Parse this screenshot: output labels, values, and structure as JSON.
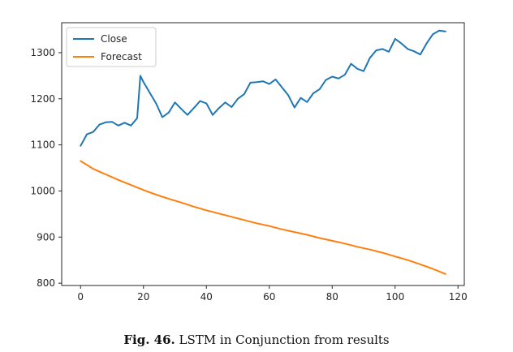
{
  "chart_data": {
    "type": "line",
    "title": "",
    "xlabel": "",
    "ylabel": "",
    "xlim": [
      -6,
      122
    ],
    "ylim": [
      795,
      1365
    ],
    "xticks": [
      0,
      20,
      40,
      60,
      80,
      100,
      120
    ],
    "yticks": [
      800,
      900,
      1000,
      1100,
      1200,
      1300
    ],
    "grid": false,
    "legend_position": "top-left",
    "series": [
      {
        "name": "Close",
        "color": "#1f77b4",
        "x": [
          0,
          2,
          4,
          6,
          8,
          10,
          12,
          14,
          16,
          18,
          19,
          20,
          22,
          24,
          26,
          28,
          30,
          32,
          34,
          36,
          38,
          40,
          42,
          44,
          46,
          48,
          50,
          52,
          54,
          56,
          58,
          60,
          62,
          64,
          66,
          68,
          70,
          72,
          74,
          76,
          78,
          80,
          82,
          84,
          86,
          88,
          90,
          92,
          94,
          96,
          98,
          100,
          102,
          104,
          106,
          108,
          110,
          112,
          114,
          116
        ],
        "values": [
          1098,
          1123,
          1128,
          1144,
          1149,
          1150,
          1142,
          1148,
          1142,
          1158,
          1250,
          1236,
          1213,
          1190,
          1160,
          1170,
          1192,
          1178,
          1165,
          1180,
          1195,
          1190,
          1165,
          1180,
          1192,
          1182,
          1200,
          1210,
          1235,
          1236,
          1238,
          1232,
          1242,
          1225,
          1208,
          1181,
          1202,
          1193,
          1212,
          1221,
          1241,
          1248,
          1244,
          1252,
          1276,
          1265,
          1260,
          1289,
          1305,
          1308,
          1302,
          1330,
          1320,
          1308,
          1303,
          1296,
          1320,
          1340,
          1348,
          1346
        ]
      },
      {
        "name": "Forecast",
        "color": "#ff7f0e",
        "x": [
          0,
          4,
          8,
          12,
          16,
          20,
          24,
          28,
          32,
          36,
          40,
          44,
          48,
          52,
          56,
          60,
          64,
          68,
          72,
          76,
          80,
          84,
          88,
          92,
          96,
          100,
          104,
          108,
          112,
          116
        ],
        "values": [
          1065,
          1048,
          1036,
          1024,
          1013,
          1002,
          992,
          983,
          975,
          966,
          958,
          951,
          944,
          937,
          930,
          924,
          917,
          911,
          905,
          898,
          892,
          886,
          879,
          873,
          866,
          858,
          850,
          841,
          831,
          820
        ]
      }
    ]
  },
  "caption": {
    "prefix": "Fig. 46.",
    "text": "LSTM in Conjunction from results"
  }
}
